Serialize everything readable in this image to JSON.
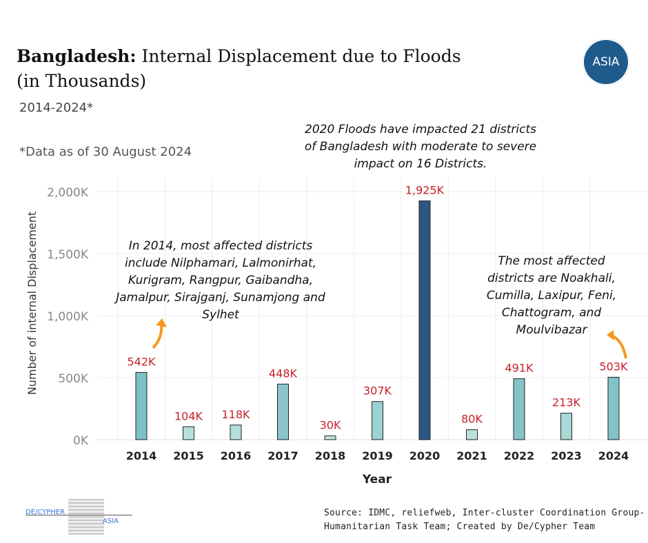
{
  "header": {
    "title_bold": "Bangladesh:",
    "title_rest": " Internal Displacement due to Floods",
    "title_line2": "(in Thousands)",
    "period": "2014-2024*",
    "data_note": "*Data as of 30 August 2024",
    "logo_text": "ASIA"
  },
  "annotations": {
    "a2020": [
      "2020 Floods have impacted 21 districts",
      "of Bangladesh with moderate to severe",
      "impact on 16 Districts."
    ],
    "a2014": [
      "In 2014, most affected districts",
      "include Nilphamari, Lalmonirhat,",
      "Kurigram, Rangpur, Gaibandha,",
      "Jamalpur, Sirajganj, Sunamjong and",
      "Sylhet"
    ],
    "a2024": [
      "The most affected",
      "districts are Noakhali,",
      "Cumilla, Laxipur, Feni,",
      "Chattogram, and",
      "Moulvibazar"
    ]
  },
  "footer": {
    "source_line1": "Source: IDMC, reliefweb, Inter-cluster Coordination Group-",
    "source_line2": "Humanitarian Task Team; Created by De/Cypher Team",
    "brand_left": "DE/CYPHER",
    "brand_right": "ASIA"
  },
  "colors": {
    "highlight": "#2a5783",
    "bar_high": "#7cbec7",
    "bar_low": "#c5e8de",
    "label": "#c8202a",
    "grid": "#ececec"
  },
  "chart_data": {
    "type": "bar",
    "title": "Bangladesh: Internal Displacement due to Floods (in Thousands)",
    "xlabel": "Year",
    "ylabel": "Number of internal Displacement",
    "categories": [
      "2014",
      "2015",
      "2016",
      "2017",
      "2018",
      "2019",
      "2020",
      "2021",
      "2022",
      "2023",
      "2024"
    ],
    "values": [
      542,
      104,
      118,
      448,
      30,
      307,
      1925,
      80,
      491,
      213,
      503
    ],
    "data_labels": [
      "542K",
      "104K",
      "118K",
      "448K",
      "30K",
      "307K",
      "1,925K",
      "80K",
      "491K",
      "213K",
      "503K"
    ],
    "highlight": "2020",
    "yticks": [
      0,
      500,
      1000,
      1500,
      2000
    ],
    "ytick_labels": [
      "0K",
      "500K",
      "1,000K",
      "1,500K",
      "2,000K"
    ],
    "ylim": [
      0,
      2000
    ],
    "grid": true
  }
}
